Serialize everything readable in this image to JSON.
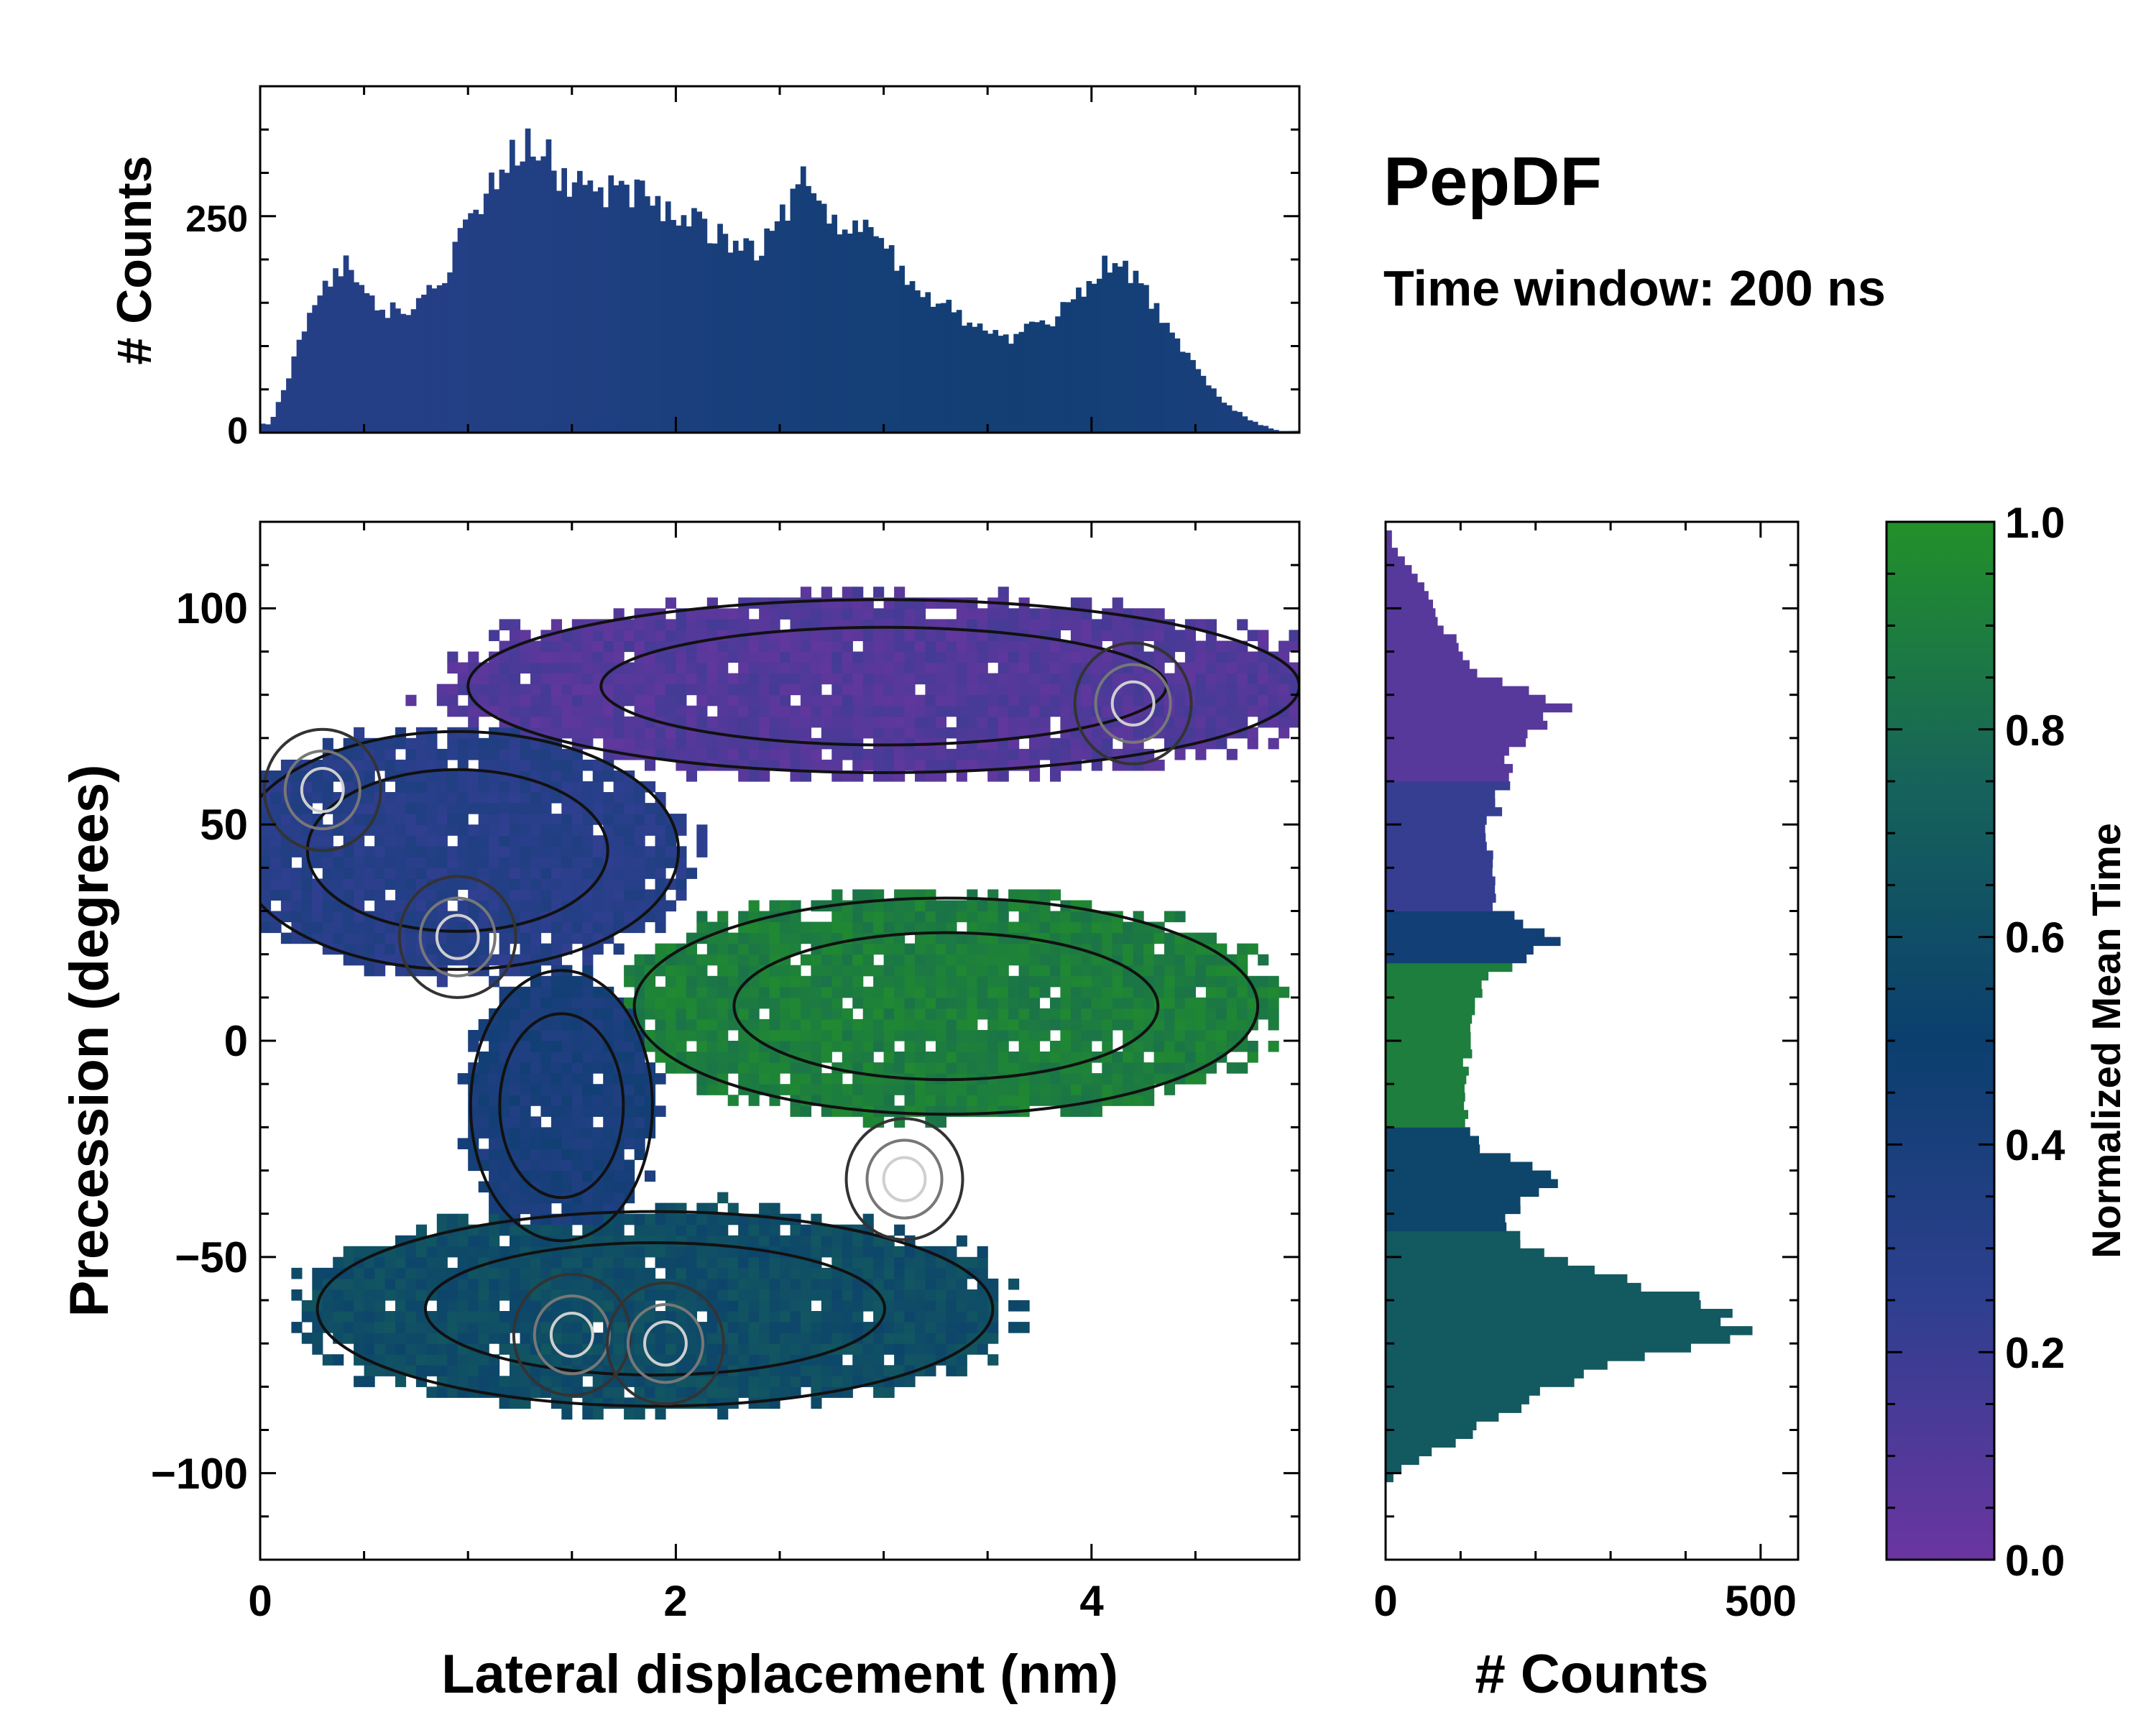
{
  "figure": {
    "title": "PepDF",
    "subtitle": "Time window: 200 ns"
  },
  "colors": {
    "cmap_low": "#6a35a0",
    "cmap_q1": "#2e3f8f",
    "cmap_mid": "#0b3f6e",
    "cmap_q3": "#16635a",
    "cmap_high": "#22902a",
    "axis": "#000000"
  },
  "chart_data": [
    {
      "id": "main",
      "type": "heatmap",
      "xlabel": "Lateral displacement (nm)",
      "ylabel": "Precession (degrees)",
      "xlim": [
        0,
        5
      ],
      "ylim": [
        -120,
        120
      ],
      "xticks": [
        0,
        2,
        4
      ],
      "yticks": [
        -100,
        -50,
        0,
        50,
        100
      ],
      "x_tick_labels": [
        "0",
        "2",
        "4"
      ],
      "y_tick_labels": [
        "−100",
        "−50",
        "0",
        "50",
        "100"
      ],
      "color_encoding": "Normalized Mean Time",
      "contours": "density contours overlaid (black outer, grey to white inner)",
      "regions": [
        {
          "name": "upper-left-blue",
          "cx": 0.95,
          "cy": 44,
          "sx": 0.85,
          "sy": 22,
          "time": 0.3
        },
        {
          "name": "upper-right-purple",
          "cx": 3.0,
          "cy": 82,
          "sx": 1.6,
          "sy": 16,
          "time": 0.1
        },
        {
          "name": "middle-green",
          "cx": 3.3,
          "cy": 8,
          "sx": 1.2,
          "sy": 20,
          "time": 0.9
        },
        {
          "name": "lower-teal",
          "cx": 1.9,
          "cy": -62,
          "sx": 1.3,
          "sy": 18,
          "time": 0.6
        },
        {
          "name": "bridge-blue",
          "cx": 1.45,
          "cy": -15,
          "sx": 0.35,
          "sy": 25,
          "time": 0.4
        }
      ],
      "peaks": [
        {
          "x": 0.3,
          "y": 58
        },
        {
          "x": 0.95,
          "y": 24
        },
        {
          "x": 4.2,
          "y": 78
        },
        {
          "x": 1.5,
          "y": -68
        },
        {
          "x": 1.95,
          "y": -70
        },
        {
          "x": 3.1,
          "y": -32
        }
      ]
    },
    {
      "id": "top-hist",
      "type": "bar",
      "ylabel": "# Counts",
      "xlim": [
        0,
        5
      ],
      "ylim": [
        0,
        400
      ],
      "yticks": [
        0,
        250
      ],
      "y_tick_labels": [
        "0",
        "250"
      ],
      "bin_width": 0.025,
      "x": [
        0.05,
        0.25,
        0.4,
        0.5,
        0.6,
        0.75,
        0.9,
        1.05,
        1.2,
        1.3,
        1.45,
        1.6,
        1.75,
        1.9,
        2.05,
        2.2,
        2.4,
        2.55,
        2.6,
        2.7,
        2.85,
        3.0,
        3.2,
        3.4,
        3.6,
        3.8,
        3.95,
        4.1,
        4.2,
        4.35,
        4.5,
        4.6,
        4.75,
        4.9
      ],
      "values": [
        10,
        140,
        195,
        160,
        140,
        145,
        190,
        260,
        320,
        345,
        295,
        280,
        285,
        270,
        250,
        230,
        215,
        260,
        300,
        250,
        245,
        210,
        165,
        125,
        110,
        130,
        160,
        200,
        185,
        130,
        75,
        45,
        15,
        2
      ]
    },
    {
      "id": "right-hist",
      "type": "bar",
      "orientation": "horizontal",
      "xlabel": "# Counts",
      "xlim": [
        0,
        550
      ],
      "xticks": [
        0,
        500
      ],
      "x_tick_labels": [
        "0",
        "500"
      ],
      "ylim": [
        -120,
        120
      ],
      "bin_width": 2,
      "y": [
        115,
        105,
        95,
        85,
        78,
        70,
        60,
        50,
        40,
        30,
        24,
        15,
        5,
        -5,
        -15,
        -25,
        -32,
        -40,
        -48,
        -56,
        -62,
        -66,
        -70,
        -75,
        -82,
        -90,
        -96,
        -100
      ],
      "values": [
        8,
        50,
        80,
        130,
        245,
        180,
        160,
        140,
        140,
        150,
        230,
        140,
        120,
        105,
        100,
        125,
        240,
        160,
        190,
        340,
        450,
        490,
        470,
        300,
        200,
        120,
        55,
        10
      ]
    }
  ],
  "colorbar": {
    "label": "Normalized Mean Time",
    "range": [
      0,
      1
    ],
    "ticks": [
      "0.0",
      "0.2",
      "0.4",
      "0.6",
      "0.8",
      "1.0"
    ]
  }
}
